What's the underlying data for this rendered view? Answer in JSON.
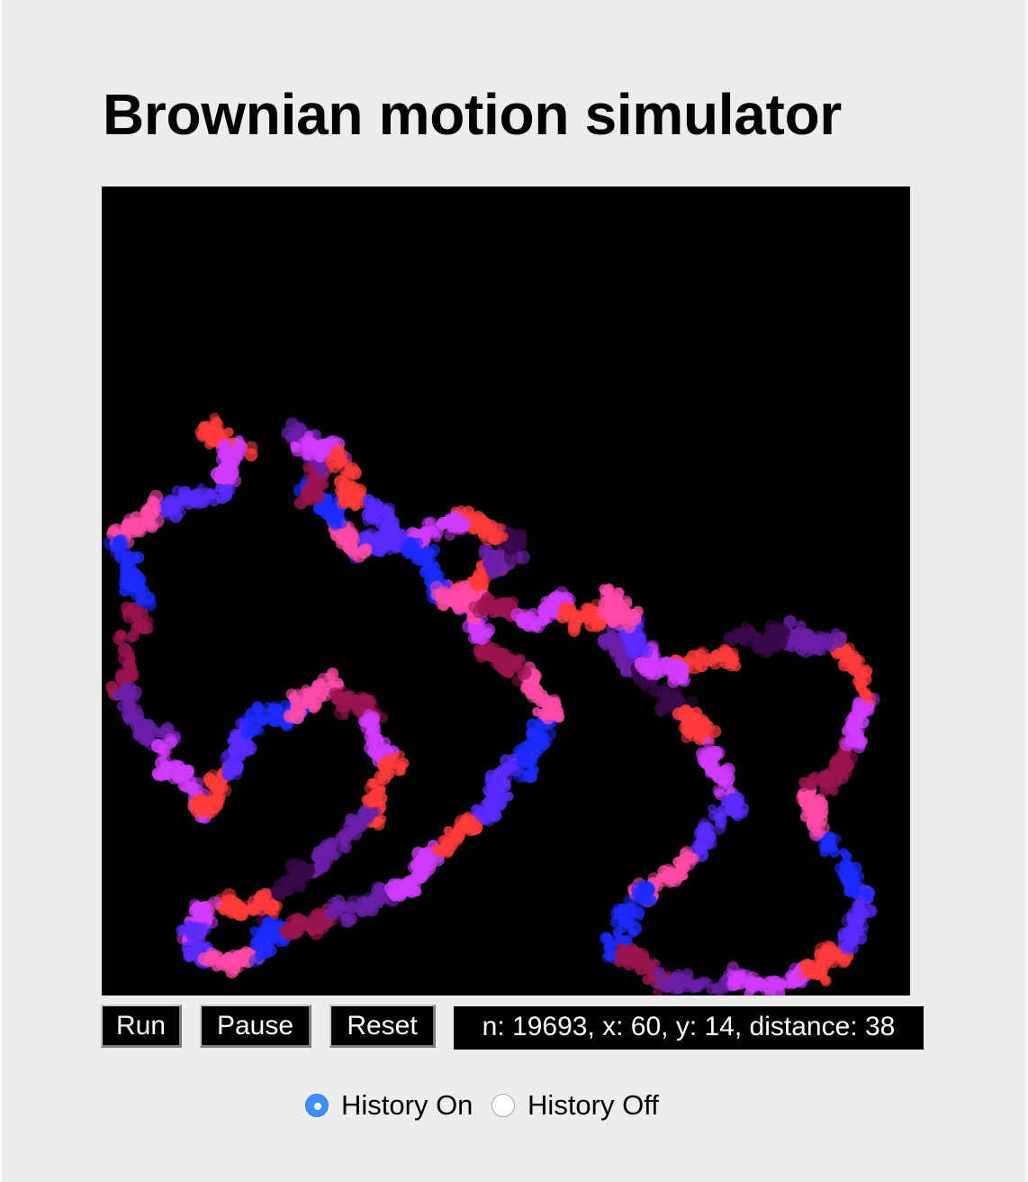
{
  "page": {
    "title": "Brownian motion simulator"
  },
  "controls": {
    "run_label": "Run",
    "pause_label": "Pause",
    "reset_label": "Reset",
    "status_text": "n: 19693, x: 60, y: 14, distance: 38"
  },
  "history": {
    "on_label": "History On",
    "off_label": "History Off",
    "selected": "on"
  },
  "simulation": {
    "n": 19693,
    "x": 60,
    "y": 14,
    "distance": 38
  },
  "colors": {
    "canvas_background": "#000000",
    "page_background": "#ededed",
    "radio_accent": "#3f8ef5",
    "trail_palette": [
      "#ff3b3b",
      "#d13cff",
      "#5a2bff",
      "#1e2bff",
      "#ff4aa8",
      "#9a1550",
      "#6b1fa8",
      "#3a0a4a"
    ]
  },
  "icons": {
    "radio_selected": "radio-checked-icon",
    "radio_unselected": "radio-unchecked-icon"
  }
}
